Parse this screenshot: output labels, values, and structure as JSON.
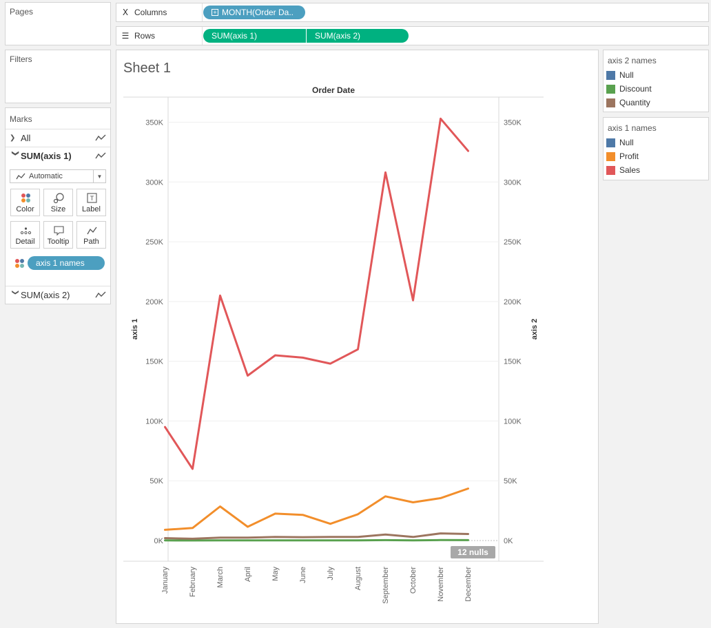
{
  "left_panel": {
    "pages_title": "Pages",
    "filters_title": "Filters",
    "marks_title": "Marks",
    "marks_rows": [
      {
        "label": "All",
        "bold": false,
        "expanded": false
      },
      {
        "label": "SUM(axis 1)",
        "bold": true,
        "expanded": true
      },
      {
        "label": "SUM(axis 2)",
        "bold": false,
        "expanded": false
      }
    ],
    "mark_type": "Automatic",
    "mark_buttons": [
      "Color",
      "Size",
      "Label",
      "Detail",
      "Tooltip",
      "Path"
    ],
    "color_pill": "axis 1 names"
  },
  "shelves": {
    "columns_label": "Columns",
    "columns_pill": "MONTH(Order Da..",
    "rows_label": "Rows",
    "rows_pills": [
      "SUM(axis 1)",
      "SUM(axis 2)"
    ]
  },
  "legends": [
    {
      "title": "axis 2 names",
      "items": [
        {
          "label": "Null",
          "color": "#4e79a7"
        },
        {
          "label": "Discount",
          "color": "#59a14f"
        },
        {
          "label": "Quantity",
          "color": "#9c755f"
        }
      ]
    },
    {
      "title": "axis 1 names",
      "items": [
        {
          "label": "Null",
          "color": "#4e79a7"
        },
        {
          "label": "Profit",
          "color": "#f28e2b"
        },
        {
          "label": "Sales",
          "color": "#e15759"
        }
      ]
    }
  ],
  "sheet": {
    "title": "Sheet 1",
    "nulls_badge": "12 nulls"
  },
  "chart_data": {
    "type": "line",
    "title": "Order Date",
    "xlabel": "",
    "ylabel": "axis 1",
    "y2label": "axis 2",
    "categories": [
      "January",
      "February",
      "March",
      "April",
      "May",
      "June",
      "July",
      "August",
      "September",
      "October",
      "November",
      "December"
    ],
    "ylim": [
      0,
      350000
    ],
    "y2lim": [
      0,
      350000
    ],
    "yticks": [
      0,
      50000,
      100000,
      150000,
      200000,
      250000,
      300000,
      350000
    ],
    "ytick_labels": [
      "0K",
      "50K",
      "100K",
      "150K",
      "200K",
      "250K",
      "300K",
      "350K"
    ],
    "grid": true,
    "series": [
      {
        "name": "Sales",
        "color": "#e15759",
        "values": [
          95000,
          60000,
          205000,
          138000,
          155000,
          153000,
          148000,
          160000,
          308000,
          201000,
          353000,
          326000
        ]
      },
      {
        "name": "Profit",
        "color": "#f28e2b",
        "values": [
          9000,
          10500,
          28500,
          11500,
          22500,
          21500,
          14000,
          22000,
          37000,
          32000,
          35500,
          43500
        ]
      },
      {
        "name": "Quantity",
        "color": "#9c755f",
        "values": [
          2000,
          1500,
          2500,
          2500,
          3000,
          2800,
          3000,
          3000,
          5000,
          3000,
          6000,
          5500
        ]
      },
      {
        "name": "Discount",
        "color": "#59a14f",
        "values": [
          100,
          80,
          200,
          150,
          170,
          160,
          170,
          180,
          350,
          200,
          380,
          370
        ]
      }
    ]
  }
}
